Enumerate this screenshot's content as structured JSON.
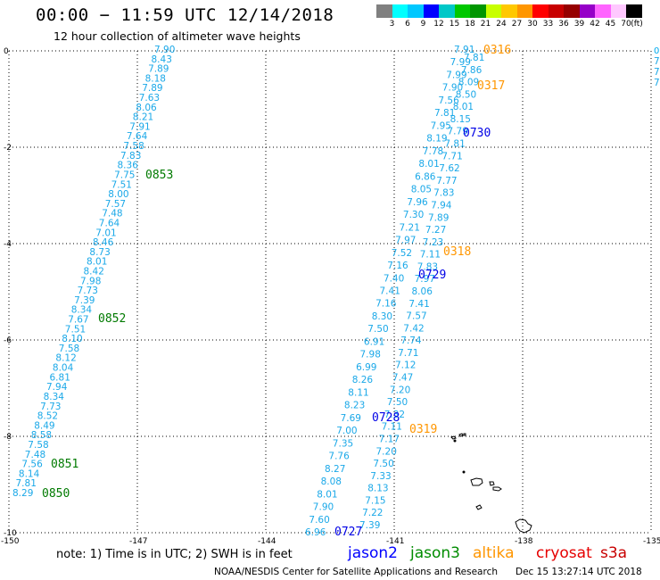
{
  "header": {
    "title": "00:00 − 11:59 UTC 12/14/2018",
    "subtitle": "12 hour collection of altimeter wave heights"
  },
  "legend": {
    "colors": [
      "#808080",
      "#00ffff",
      "#00c8ff",
      "#0000ff",
      "#00c8c8",
      "#00c800",
      "#009600",
      "#c8ff00",
      "#ffc800",
      "#ff9600",
      "#ff0000",
      "#c80000",
      "#960000",
      "#9600c8",
      "#ff64ff",
      "#ffc8ff",
      "#000000"
    ],
    "ticks": [
      "3",
      "6",
      "9",
      "12",
      "15",
      "18",
      "21",
      "24",
      "27",
      "30",
      "33",
      "36",
      "39",
      "42",
      "45",
      "70",
      "(ft)"
    ]
  },
  "axes": {
    "x_ticks": [
      "-150",
      "-147",
      "-144",
      "-141",
      "-138",
      "-135"
    ],
    "y_ticks": [
      "0",
      "-2",
      "-4",
      "-6",
      "-8",
      "-10"
    ],
    "right_label": "0"
  },
  "tracks": {
    "left_track": {
      "swh": [
        "7.90",
        "8.43",
        "7.89",
        "8.18",
        "7.89",
        "7.63",
        "8.06",
        "8.21",
        "7.91",
        "7.64",
        "7.58",
        "7.83",
        "8.36",
        "7.75",
        "7.51",
        "8.00",
        "7.57",
        "7.48",
        "7.64",
        "7.01",
        "8.46",
        "8.73",
        "8.01",
        "8.42",
        "7.98",
        "7.73",
        "7.39",
        "8.34",
        "7.67",
        "7.51",
        "8.10",
        "7.58",
        "8.12",
        "8.04",
        "6.81",
        "7.94",
        "8.34",
        "7.73",
        "8.52",
        "8.49",
        "8.58",
        "7.58",
        "7.48",
        "7.56",
        "8.14",
        "7.81",
        "8.29"
      ],
      "times": [
        "0853",
        "0852",
        "0851",
        "0850"
      ]
    },
    "right_track_a": {
      "swh": [
        "7.91",
        "7.81",
        "7.99",
        "7.86",
        "7.99",
        "8.09",
        "7.90",
        "8.50",
        "7.56",
        "8.01",
        "7.81",
        "8.15",
        "7.95",
        "7.79",
        "8.19",
        "7.81",
        "7.78",
        "7.71",
        "8.01",
        "7.62",
        "6.86",
        "7.77",
        "8.05",
        "7.83",
        "7.96",
        "7.94",
        "7.30",
        "7.89",
        "7.21",
        "7.27",
        "7.97",
        "7.23",
        "7.52",
        "7.11",
        "7.16",
        "7.83",
        "7.40",
        "7.97",
        "7.41",
        "8.06",
        "7.16",
        "7.41",
        "8.30",
        "7.57",
        "7.50",
        "7.42",
        "6.91",
        "7.74",
        "7.98",
        "7.71",
        "6.99",
        "7.12",
        "8.26",
        "7.47",
        "8.11",
        "7.20",
        "8.23",
        "7.50",
        "7.69",
        "7.32",
        "7.00",
        "7.11",
        "7.35",
        "7.17",
        "7.76",
        "7.20",
        "8.27",
        "7.50",
        "8.08",
        "7.33",
        "8.01",
        "8.13",
        "7.90",
        "7.15",
        "7.60",
        "7.22",
        "6.96",
        "7.39"
      ],
      "times_blue": [
        "0730",
        "0729",
        "0728",
        "0727"
      ],
      "times_orange": [
        "0316",
        "0317",
        "0318",
        "0319"
      ]
    }
  },
  "footer": {
    "note": "note:  1) Time is in UTC;  2) SWH is in feet",
    "satellites": [
      {
        "name": "jason2",
        "color": "#0000ff"
      },
      {
        "name": "jason3",
        "color": "#008c00"
      },
      {
        "name": "altika",
        "color": "#ff9600"
      },
      {
        "name": "cryosat",
        "color": "#e60000"
      },
      {
        "name": "s3a",
        "color": "#c80000"
      }
    ],
    "credit": "NOAA/NESDIS Center for Satellite Applications and Research",
    "timestamp": "Dec 15 13:27:14 UTC 2018"
  }
}
